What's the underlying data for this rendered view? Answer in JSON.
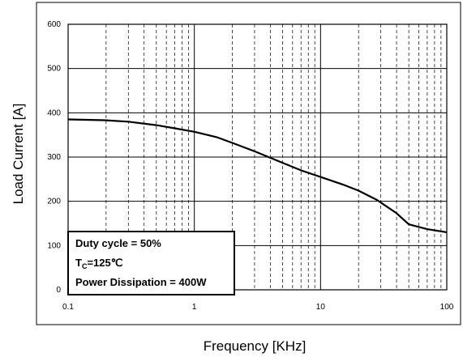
{
  "chart_data": {
    "type": "line",
    "title": "",
    "xlabel": "Frequency [KHz]",
    "ylabel": "Load  Current [A]",
    "xscale": "log",
    "xlim": [
      0.1,
      100
    ],
    "ylim": [
      0,
      600
    ],
    "x_ticks": [
      0.1,
      1,
      10,
      100
    ],
    "x_tick_labels": [
      "0.1",
      "1",
      "10",
      "100"
    ],
    "y_ticks": [
      0,
      100,
      200,
      300,
      400,
      500,
      600
    ],
    "y_tick_labels": [
      "0",
      "100",
      "200",
      "300",
      "400",
      "500",
      "600"
    ],
    "grid": {
      "major": "solid",
      "minor_x": "dashed"
    },
    "series": [
      {
        "color": "#000000",
        "x": [
          0.1,
          0.2,
          0.3,
          0.5,
          0.7,
          1,
          1.5,
          2,
          3,
          5,
          7,
          10,
          15,
          20,
          28,
          40,
          50,
          70,
          100
        ],
        "y": [
          385,
          383,
          380,
          372,
          365,
          357,
          345,
          332,
          313,
          287,
          270,
          255,
          238,
          224,
          203,
          173,
          148,
          137,
          130
        ]
      }
    ],
    "annotation": {
      "lines": [
        {
          "text": "Duty cycle = 50%"
        },
        {
          "main": "T",
          "sub": "C",
          "rest": "=125℃"
        },
        {
          "text": "Power Dissipation = 400W"
        }
      ]
    }
  }
}
